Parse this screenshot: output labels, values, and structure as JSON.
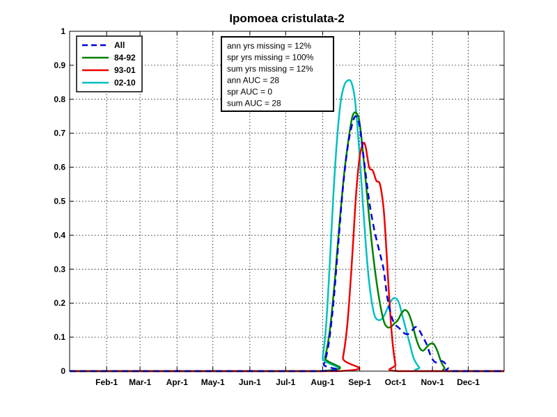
{
  "chart_data": {
    "type": "line",
    "title": "Ipomoea cristulata-2",
    "xlabel": "",
    "ylabel": "",
    "ylim": [
      0,
      1
    ],
    "yticks": [
      "0",
      "0.1",
      "0.2",
      "0.3",
      "0.4",
      "0.5",
      "0.6",
      "0.7",
      "0.8",
      "0.9",
      "1"
    ],
    "grid": true,
    "legend_position": "top-left",
    "x_tick_labels": [
      "Feb-1",
      "Mar-1",
      "Apr-1",
      "May-1",
      "Jun-1",
      "Jul-1",
      "Aug-1",
      "Sep-1",
      "Oct-1",
      "Nov-1",
      "Dec-1"
    ],
    "x_tick_days": [
      32,
      60,
      91,
      121,
      152,
      182,
      213,
      244,
      274,
      305,
      335
    ],
    "xlim_days": [
      1,
      365
    ],
    "annotation_lines": [
      "ann yrs missing = 12%",
      "spr yrs missing = 100%",
      "sum yrs missing = 12%",
      "ann AUC = 28",
      "spr AUC = 0",
      "sum AUC = 28"
    ],
    "series": [
      {
        "name": "All",
        "color": "#0000dd",
        "style": "dashed",
        "points": [
          [
            1,
            0
          ],
          [
            210,
            0
          ],
          [
            214,
            0.02
          ],
          [
            218,
            0.08
          ],
          [
            222,
            0.2
          ],
          [
            226,
            0.37
          ],
          [
            230,
            0.54
          ],
          [
            234,
            0.66
          ],
          [
            238,
            0.73
          ],
          [
            241,
            0.75
          ],
          [
            244,
            0.72
          ],
          [
            248,
            0.61
          ],
          [
            252,
            0.5
          ],
          [
            256,
            0.42
          ],
          [
            260,
            0.36
          ],
          [
            264,
            0.3
          ],
          [
            267,
            0.22
          ],
          [
            270,
            0.17
          ],
          [
            273,
            0.14
          ],
          [
            276,
            0.13
          ],
          [
            279,
            0.12
          ],
          [
            282,
            0.11
          ],
          [
            285,
            0.11
          ],
          [
            288,
            0.12
          ],
          [
            291,
            0.13
          ],
          [
            294,
            0.12
          ],
          [
            297,
            0.1
          ],
          [
            300,
            0.08
          ],
          [
            303,
            0.05
          ],
          [
            306,
            0.03
          ],
          [
            309,
            0.025
          ],
          [
            312,
            0.03
          ],
          [
            315,
            0.025
          ],
          [
            318,
            0.01
          ],
          [
            320,
            0
          ],
          [
            365,
            0
          ]
        ]
      },
      {
        "name": "84-92",
        "color": "#008000",
        "style": "solid",
        "points": [
          [
            1,
            0
          ],
          [
            211,
            0
          ],
          [
            215,
            0.04
          ],
          [
            219,
            0.12
          ],
          [
            223,
            0.26
          ],
          [
            227,
            0.43
          ],
          [
            231,
            0.58
          ],
          [
            235,
            0.69
          ],
          [
            238,
            0.75
          ],
          [
            241,
            0.76
          ],
          [
            244,
            0.73
          ],
          [
            248,
            0.6
          ],
          [
            252,
            0.45
          ],
          [
            256,
            0.32
          ],
          [
            260,
            0.22
          ],
          [
            264,
            0.15
          ],
          [
            267,
            0.13
          ],
          [
            270,
            0.13
          ],
          [
            273,
            0.14
          ],
          [
            276,
            0.15
          ],
          [
            279,
            0.17
          ],
          [
            282,
            0.18
          ],
          [
            285,
            0.17
          ],
          [
            288,
            0.14
          ],
          [
            291,
            0.1
          ],
          [
            294,
            0.07
          ],
          [
            297,
            0.06
          ],
          [
            300,
            0.07
          ],
          [
            303,
            0.08
          ],
          [
            306,
            0.08
          ],
          [
            309,
            0.06
          ],
          [
            312,
            0.03
          ],
          [
            315,
            0.01
          ],
          [
            318,
            0
          ],
          [
            365,
            0
          ]
        ]
      },
      {
        "name": "93-01",
        "color": "#ee0000",
        "style": "solid",
        "points": [
          [
            1,
            0
          ],
          [
            226,
            0
          ],
          [
            230,
            0.04
          ],
          [
            234,
            0.15
          ],
          [
            238,
            0.35
          ],
          [
            241,
            0.52
          ],
          [
            244,
            0.63
          ],
          [
            247,
            0.67
          ],
          [
            249,
            0.66
          ],
          [
            252,
            0.6
          ],
          [
            255,
            0.59
          ],
          [
            258,
            0.56
          ],
          [
            261,
            0.55
          ],
          [
            264,
            0.48
          ],
          [
            266,
            0.38
          ],
          [
            268,
            0.26
          ],
          [
            270,
            0.15
          ],
          [
            272,
            0.07
          ],
          [
            274,
            0.02
          ],
          [
            276,
            0
          ],
          [
            365,
            0
          ]
        ]
      },
      {
        "name": "02-10",
        "color": "#00c0c0",
        "style": "solid",
        "points": [
          [
            1,
            0
          ],
          [
            210,
            0
          ],
          [
            213,
            0.04
          ],
          [
            216,
            0.14
          ],
          [
            219,
            0.32
          ],
          [
            222,
            0.52
          ],
          [
            225,
            0.68
          ],
          [
            228,
            0.79
          ],
          [
            231,
            0.84
          ],
          [
            234,
            0.855
          ],
          [
            237,
            0.85
          ],
          [
            240,
            0.8
          ],
          [
            243,
            0.68
          ],
          [
            246,
            0.53
          ],
          [
            249,
            0.38
          ],
          [
            252,
            0.26
          ],
          [
            256,
            0.17
          ],
          [
            260,
            0.15
          ],
          [
            264,
            0.16
          ],
          [
            268,
            0.19
          ],
          [
            271,
            0.21
          ],
          [
            274,
            0.215
          ],
          [
            277,
            0.2
          ],
          [
            280,
            0.16
          ],
          [
            283,
            0.12
          ],
          [
            286,
            0.08
          ],
          [
            289,
            0.04
          ],
          [
            292,
            0.02
          ],
          [
            294,
            0.01
          ],
          [
            296,
            0
          ],
          [
            365,
            0
          ]
        ]
      }
    ]
  }
}
